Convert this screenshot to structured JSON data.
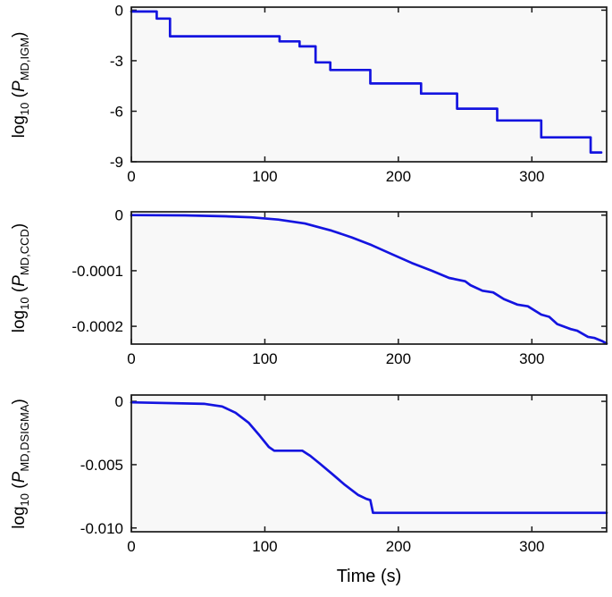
{
  "xlabel": "Time (s)",
  "style": {
    "line_color": "#1414e0",
    "axis_color": "#1a1a1a",
    "plot_bg": "#f8f8f8",
    "tick_label_color": "#000000"
  },
  "chart_data": [
    {
      "type": "line",
      "name": "log10 P_MD,IGM vs time",
      "ylabel": {
        "pre": "log",
        "pre_sub": "10",
        "mid": " (",
        "sym": "P",
        "sym_sub": "MD,IGM",
        "post": ")"
      },
      "xlim": [
        0,
        356
      ],
      "ylim": [
        -9.0,
        0.18
      ],
      "xticks": [
        0,
        100,
        200,
        300
      ],
      "ytick_vals": [
        0,
        -3,
        -6,
        -9
      ],
      "ytick_labels": [
        "0",
        "-3",
        "-6",
        "-9"
      ],
      "x": [
        0,
        19,
        19,
        29,
        29,
        111,
        111,
        126,
        126,
        138,
        138,
        149,
        149,
        179,
        179,
        217,
        217,
        244,
        244,
        274,
        274,
        307,
        307,
        344,
        344,
        352
      ],
      "y": [
        -0.08,
        -0.08,
        -0.5,
        -0.5,
        -1.55,
        -1.55,
        -1.85,
        -1.85,
        -2.15,
        -2.15,
        -3.1,
        -3.1,
        -3.55,
        -3.55,
        -4.35,
        -4.35,
        -4.95,
        -4.95,
        -5.85,
        -5.85,
        -6.55,
        -6.55,
        -7.55,
        -7.55,
        -8.45,
        -8.45
      ]
    },
    {
      "type": "line",
      "name": "log10 P_MD,CCD vs time",
      "ylabel": {
        "pre": "log",
        "pre_sub": "10",
        "mid": " (",
        "sym": "P",
        "sym_sub": "MD,CCD",
        "post": ")"
      },
      "xlim": [
        0,
        356
      ],
      "ylim": [
        -0.000232,
        6e-06
      ],
      "xticks": [
        0,
        100,
        200,
        300
      ],
      "ytick_vals": [
        0,
        -0.0001,
        -0.0002
      ],
      "ytick_labels": [
        "0",
        "-0.0001",
        "-0.0002"
      ],
      "x": [
        0,
        40,
        70,
        90,
        110,
        130,
        150,
        165,
        180,
        195,
        210,
        225,
        238,
        250,
        254,
        263,
        271,
        279,
        289,
        297,
        307,
        313,
        319,
        329,
        334,
        342,
        347,
        353,
        356
      ],
      "y": [
        0,
        -5e-07,
        -2e-06,
        -4e-06,
        -8e-06,
        -1.5e-05,
        -2.8e-05,
        -4e-05,
        -5.4e-05,
        -7e-05,
        -8.6e-05,
        -0.0001,
        -0.000113,
        -0.000119,
        -0.000126,
        -0.000136,
        -0.000139,
        -0.000151,
        -0.000161,
        -0.000164,
        -0.000179,
        -0.000183,
        -0.000196,
        -0.000205,
        -0.000208,
        -0.000219,
        -0.000221,
        -0.000227,
        -0.000231
      ]
    },
    {
      "type": "line",
      "name": "log10 P_MD,DSIGMA vs time",
      "ylabel": {
        "pre": "log",
        "pre_sub": "10",
        "mid": " (",
        "sym": "P",
        "sym_sub": "MD,DSIGMA",
        "post": ")"
      },
      "xlim": [
        0,
        356
      ],
      "ylim": [
        -0.0103,
        0.0005
      ],
      "xticks": [
        0,
        100,
        200,
        300
      ],
      "ytick_vals": [
        0,
        -0.005,
        -0.01
      ],
      "ytick_labels": [
        "0",
        "-0.005",
        "-0.010"
      ],
      "x": [
        0,
        55,
        68,
        78,
        88,
        96,
        103,
        107,
        128,
        134,
        141,
        150,
        160,
        170,
        176,
        179,
        181,
        356
      ],
      "y": [
        -8e-05,
        -0.0002,
        -0.0004,
        -0.0009,
        -0.0017,
        -0.0027,
        -0.0036,
        -0.0039,
        -0.0039,
        -0.0043,
        -0.0049,
        -0.0057,
        -0.0066,
        -0.0074,
        -0.0077,
        -0.0078,
        -0.0088,
        -0.0088
      ]
    }
  ]
}
